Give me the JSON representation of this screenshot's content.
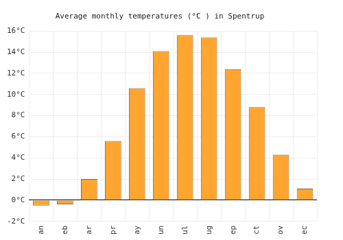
{
  "chart_data": {
    "type": "bar",
    "title": "Average monthly temperatures (°C ) in Spentrup",
    "categories": [
      "an",
      "eb",
      "ar",
      "pr",
      "ay",
      "un",
      "ul",
      "ug",
      "ep",
      "ct",
      "ov",
      "ec"
    ],
    "values": [
      -0.5,
      -0.4,
      2.0,
      5.6,
      10.6,
      14.1,
      15.6,
      15.4,
      12.4,
      8.8,
      4.3,
      1.1
    ],
    "color": "#ffa530",
    "ylim": [
      -2,
      16
    ],
    "yticks": [
      {
        "value": -2,
        "label": "-2°C"
      },
      {
        "value": 0,
        "label": "0°C"
      },
      {
        "value": 2,
        "label": "2°C"
      },
      {
        "value": 4,
        "label": "4°C"
      },
      {
        "value": 6,
        "label": "6°C"
      },
      {
        "value": 8,
        "label": "8°C"
      },
      {
        "value": 10,
        "label": "10°C"
      },
      {
        "value": 12,
        "label": "12°C"
      },
      {
        "value": 14,
        "label": "14°C"
      },
      {
        "value": 16,
        "label": "16°C"
      }
    ],
    "grid": true
  }
}
